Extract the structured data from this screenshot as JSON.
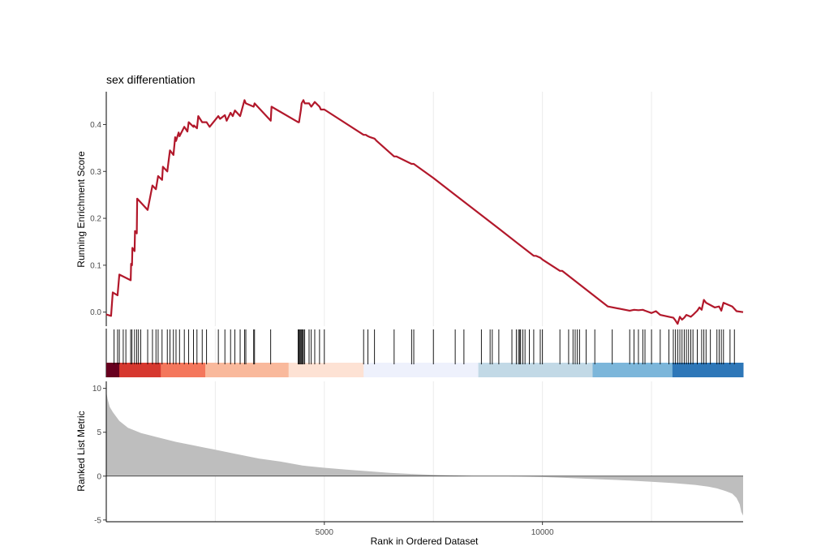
{
  "chart_data": {
    "type": "line",
    "title": "sex differentiation",
    "x_range": [
      1,
      14600
    ],
    "x_ticks": [
      5000,
      10000
    ],
    "xlabel": "Rank in Ordered Dataset",
    "grid": "vertical",
    "panels": [
      {
        "name": "running-enrichment",
        "ylabel": "Running Enrichment Score",
        "ylim": [
          -0.03,
          0.47
        ],
        "y_ticks": [
          0.0,
          0.1,
          0.2,
          0.3,
          0.4
        ],
        "y_tick_labels": [
          "0.0",
          "0.1",
          "0.2",
          "0.3",
          "0.4"
        ],
        "line_color": "#B2182B",
        "series": [
          {
            "x": [
              0,
              110,
              150,
              260,
              300,
              560,
              570,
              590,
              600,
              650,
              660,
              700,
              710,
              950,
              1060,
              1140,
              1190,
              1280,
              1300,
              1400,
              1460,
              1540,
              1580,
              1600,
              1660,
              1680,
              1790,
              1860,
              1890,
              2000,
              2010,
              2080,
              2110,
              2200,
              2300,
              2370,
              2570,
              2610,
              2720,
              2760,
              2850,
              2900,
              2950,
              3070,
              3170,
              3200,
              3380,
              3400,
              3770,
              3790,
              4400,
              4420,
              4440,
              4460,
              4480,
              4520,
              4550,
              4650,
              4700,
              4780,
              4890,
              4920,
              5000,
              5000,
              5900,
              5950,
              6000,
              6050,
              6150,
              6200,
              6600,
              6650,
              7000,
              7050,
              7500,
              8000,
              9000,
              9800,
              9850,
              9950,
              10000,
              10400,
              10450,
              11500,
              12000,
              12100,
              12200,
              12300,
              12350,
              12500,
              12600,
              12700,
              12900,
              13000,
              13050,
              13100,
              13150,
              13200,
              13250,
              13300,
              13400,
              13450,
              13550,
              13600,
              13650,
              13700,
              13750,
              13850,
              13950,
              14050,
              14100,
              14150,
              14350,
              14450,
              14600
            ],
            "y": [
              -0.005,
              -0.008,
              0.042,
              0.036,
              0.08,
              0.068,
              0.103,
              0.1,
              0.137,
              0.13,
              0.173,
              0.168,
              0.242,
              0.218,
              0.27,
              0.262,
              0.29,
              0.282,
              0.31,
              0.3,
              0.345,
              0.335,
              0.373,
              0.365,
              0.383,
              0.375,
              0.395,
              0.385,
              0.405,
              0.395,
              0.398,
              0.392,
              0.418,
              0.405,
              0.405,
              0.395,
              0.418,
              0.412,
              0.42,
              0.408,
              0.425,
              0.418,
              0.43,
              0.418,
              0.452,
              0.445,
              0.438,
              0.445,
              0.408,
              0.438,
              0.405,
              0.405,
              0.418,
              0.43,
              0.445,
              0.452,
              0.445,
              0.445,
              0.438,
              0.448,
              0.438,
              0.432,
              0.432,
              0.432,
              0.378,
              0.378,
              0.375,
              0.373,
              0.37,
              0.365,
              0.332,
              0.332,
              0.316,
              0.316,
              0.286,
              0.25,
              0.178,
              0.12,
              0.12,
              0.116,
              0.112,
              0.088,
              0.088,
              0.012,
              0.003,
              0.005,
              0.004,
              0.005,
              0.003,
              -0.002,
              0.002,
              -0.006,
              -0.01,
              -0.012,
              -0.018,
              -0.025,
              -0.01,
              -0.016,
              -0.012,
              -0.006,
              -0.01,
              -0.006,
              0.003,
              0.01,
              0.005,
              0.026,
              0.02,
              0.015,
              0.01,
              0.012,
              0.003,
              0.02,
              0.012,
              0.002,
              0.0
            ]
          }
        ]
      },
      {
        "name": "gene-hits",
        "hits": [
          180,
          260,
          300,
          390,
          450,
          560,
          590,
          650,
          700,
          740,
          790,
          950,
          1060,
          1140,
          1190,
          1280,
          1400,
          1460,
          1540,
          1600,
          1680,
          1790,
          1890,
          2000,
          2080,
          2200,
          2300,
          2570,
          2720,
          2850,
          2950,
          3070,
          3170,
          3200,
          3380,
          3400,
          3770,
          4400,
          4420,
          4440,
          4460,
          4480,
          4500,
          4520,
          4550,
          4650,
          4700,
          4780,
          4890,
          5000,
          5900,
          6000,
          6150,
          6600,
          7000,
          7050,
          7500,
          8000,
          8200,
          8600,
          8800,
          8850,
          9000,
          9300,
          9400,
          9450,
          9480,
          9500,
          9550,
          9600,
          9700,
          9800,
          9950,
          10000,
          10400,
          10600,
          10700,
          10750,
          10800,
          10850,
          11000,
          11200,
          11600,
          12000,
          12100,
          12200,
          12300,
          12350,
          12500,
          12700,
          12900,
          13000,
          13050,
          13100,
          13150,
          13200,
          13250,
          13300,
          13350,
          13400,
          13450,
          13550,
          13650,
          13700,
          13750,
          13850,
          14000,
          14050,
          14100,
          14150,
          14300,
          14400
        ],
        "color_bands": [
          {
            "x": [
              1,
              300
            ],
            "color": "#67001F"
          },
          {
            "x": [
              300,
              1250
            ],
            "color": "#D6382F"
          },
          {
            "x": [
              1250,
              2270
            ],
            "color": "#F4775C"
          },
          {
            "x": [
              2270,
              4180
            ],
            "color": "#F9B99C"
          },
          {
            "x": [
              4180,
              5900
            ],
            "color": "#FDE2D4"
          },
          {
            "x": [
              5900,
              8530
            ],
            "color": "#EEF1FC"
          },
          {
            "x": [
              8530,
              11150
            ],
            "color": "#C2D9E6"
          },
          {
            "x": [
              11150,
              12980
            ],
            "color": "#7CB6DA"
          },
          {
            "x": [
              12980,
              14600
            ],
            "color": "#2E77B8"
          }
        ]
      },
      {
        "name": "ranked-list-metric",
        "type": "area",
        "ylabel": "Ranked List Metric",
        "ylim": [
          -5.2,
          10.8
        ],
        "y_ticks": [
          -5,
          0,
          5,
          10
        ],
        "y_tick_labels": [
          "-5",
          "0",
          "5",
          "10"
        ],
        "fill_color": "#BEBEBE",
        "series": [
          {
            "x": [
              1,
              30,
              80,
              150,
              300,
              500,
              800,
              1200,
              1600,
              2000,
              2500,
              3000,
              3500,
              4000,
              4500,
              5000,
              5500,
              6000,
              6500,
              7000,
              7500,
              8000,
              8500,
              9000,
              9500,
              10000,
              10500,
              11000,
              11500,
              12000,
              12500,
              13000,
              13500,
              13800,
              14000,
              14200,
              14350,
              14450,
              14520,
              14560,
              14600
            ],
            "y": [
              9.6,
              8.8,
              7.9,
              7.3,
              6.3,
              5.5,
              4.9,
              4.4,
              3.9,
              3.5,
              3.0,
              2.5,
              2.0,
              1.65,
              1.2,
              0.95,
              0.75,
              0.55,
              0.38,
              0.25,
              0.15,
              0.07,
              0.02,
              0.0,
              -0.05,
              -0.1,
              -0.2,
              -0.3,
              -0.4,
              -0.5,
              -0.65,
              -0.8,
              -1.0,
              -1.2,
              -1.4,
              -1.7,
              -2.0,
              -2.5,
              -3.2,
              -4.1,
              -4.5
            ]
          }
        ]
      }
    ]
  }
}
